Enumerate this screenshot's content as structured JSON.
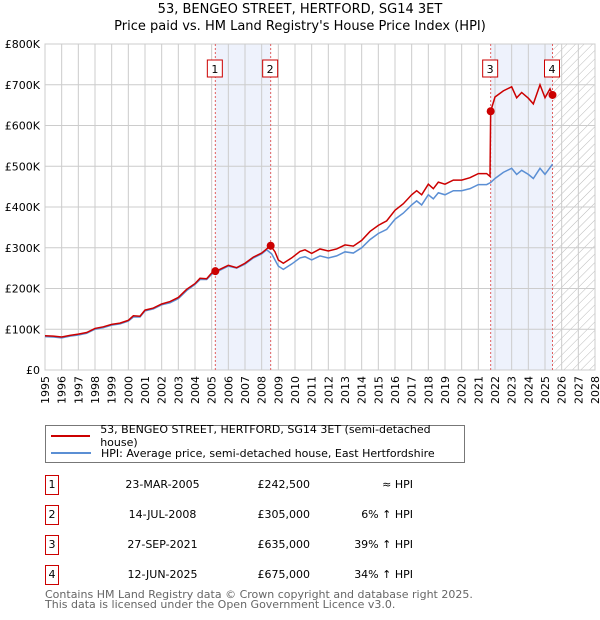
{
  "chart_data": {
    "type": "line",
    "title": "53, BENGEO STREET, HERTFORD, SG14 3ET",
    "subtitle": "Price paid vs. HM Land Registry's House Price Index (HPI)",
    "xlim": [
      1995,
      2028
    ],
    "ylim": [
      0,
      800000
    ],
    "x_ticks": [
      "1995",
      "1996",
      "1997",
      "1998",
      "1999",
      "2000",
      "2001",
      "2002",
      "2003",
      "2004",
      "2005",
      "2006",
      "2007",
      "2008",
      "2009",
      "2010",
      "2011",
      "2012",
      "2013",
      "2014",
      "2015",
      "2016",
      "2017",
      "2018",
      "2019",
      "2020",
      "2021",
      "2022",
      "2023",
      "2024",
      "2025",
      "2026",
      "2027",
      "2028"
    ],
    "y_ticks": [
      {
        "v": 0,
        "label": "£0"
      },
      {
        "v": 100000,
        "label": "£100K"
      },
      {
        "v": 200000,
        "label": "£200K"
      },
      {
        "v": 300000,
        "label": "£300K"
      },
      {
        "v": 400000,
        "label": "£400K"
      },
      {
        "v": 500000,
        "label": "£500K"
      },
      {
        "v": 600000,
        "label": "£600K"
      },
      {
        "v": 700000,
        "label": "£700K"
      },
      {
        "v": 800000,
        "label": "£800K"
      }
    ],
    "grid": true,
    "legend_placement": "below",
    "colors": {
      "property": "#cc0000",
      "hpi": "#5b8fd4",
      "shade": "#eef2fc",
      "vline": "#e06060"
    },
    "shaded_ranges": [
      [
        2005.22,
        2008.54
      ],
      [
        2021.74,
        2025.45
      ]
    ],
    "forecast_from": 2025.45,
    "series": [
      {
        "name": "53, BENGEO STREET, HERTFORD, SG14 3ET (semi-detached house)",
        "color": "#cc0000",
        "points": [
          [
            1995,
            84
          ],
          [
            1995.5,
            83
          ],
          [
            1996,
            81
          ],
          [
            1996.5,
            85
          ],
          [
            1997,
            88
          ],
          [
            1997.5,
            92
          ],
          [
            1998,
            102
          ],
          [
            1998.5,
            106
          ],
          [
            1999,
            112
          ],
          [
            1999.5,
            115
          ],
          [
            2000,
            122
          ],
          [
            2000.3,
            133
          ],
          [
            2000.7,
            132
          ],
          [
            2001,
            147
          ],
          [
            2001.5,
            152
          ],
          [
            2002,
            162
          ],
          [
            2002.5,
            168
          ],
          [
            2003,
            178
          ],
          [
            2003.5,
            198
          ],
          [
            2004,
            212
          ],
          [
            2004.3,
            225
          ],
          [
            2004.7,
            224
          ],
          [
            2005,
            238
          ],
          [
            2005.22,
            242.5
          ],
          [
            2005.5,
            247
          ],
          [
            2006,
            257
          ],
          [
            2006.5,
            251
          ],
          [
            2007,
            262
          ],
          [
            2007.5,
            277
          ],
          [
            2008,
            287
          ],
          [
            2008.3,
            297
          ],
          [
            2008.54,
            305
          ],
          [
            2008.8,
            290
          ],
          [
            2009,
            270
          ],
          [
            2009.3,
            262
          ],
          [
            2009.8,
            275
          ],
          [
            2010.3,
            291
          ],
          [
            2010.6,
            295
          ],
          [
            2011,
            286
          ],
          [
            2011.5,
            297
          ],
          [
            2012,
            292
          ],
          [
            2012.5,
            297
          ],
          [
            2013,
            307
          ],
          [
            2013.5,
            304
          ],
          [
            2014,
            318
          ],
          [
            2014.5,
            340
          ],
          [
            2015,
            355
          ],
          [
            2015.5,
            366
          ],
          [
            2016,
            392
          ],
          [
            2016.5,
            408
          ],
          [
            2017,
            430
          ],
          [
            2017.3,
            440
          ],
          [
            2017.6,
            430
          ],
          [
            2018,
            456
          ],
          [
            2018.3,
            445
          ],
          [
            2018.6,
            461
          ],
          [
            2019,
            456
          ],
          [
            2019.5,
            466
          ],
          [
            2020,
            466
          ],
          [
            2020.5,
            472
          ],
          [
            2021,
            482
          ],
          [
            2021.5,
            482
          ],
          [
            2021.7,
            475
          ],
          [
            2021.74,
            635
          ],
          [
            2022,
            670
          ],
          [
            2022.5,
            685
          ],
          [
            2023,
            695
          ],
          [
            2023.3,
            668
          ],
          [
            2023.6,
            681
          ],
          [
            2024,
            667
          ],
          [
            2024.3,
            653
          ],
          [
            2024.7,
            700
          ],
          [
            2025,
            668
          ],
          [
            2025.3,
            690
          ],
          [
            2025.45,
            675
          ]
        ]
      },
      {
        "name": "HPI: Average price, semi-detached house, East Hertfordshire",
        "color": "#5b8fd4",
        "points": [
          [
            1995,
            82
          ],
          [
            1995.5,
            81
          ],
          [
            1996,
            79
          ],
          [
            1996.5,
            83
          ],
          [
            1997,
            86
          ],
          [
            1997.5,
            90
          ],
          [
            1998,
            100
          ],
          [
            1998.5,
            104
          ],
          [
            1999,
            110
          ],
          [
            1999.5,
            113
          ],
          [
            2000,
            120
          ],
          [
            2000.3,
            130
          ],
          [
            2000.7,
            130
          ],
          [
            2001,
            145
          ],
          [
            2001.5,
            150
          ],
          [
            2002,
            160
          ],
          [
            2002.5,
            165
          ],
          [
            2003,
            175
          ],
          [
            2003.5,
            195
          ],
          [
            2004,
            210
          ],
          [
            2004.3,
            222
          ],
          [
            2004.7,
            222
          ],
          [
            2005,
            235
          ],
          [
            2005.5,
            245
          ],
          [
            2006,
            255
          ],
          [
            2006.5,
            250
          ],
          [
            2007,
            260
          ],
          [
            2007.5,
            275
          ],
          [
            2008,
            285
          ],
          [
            2008.3,
            295
          ],
          [
            2008.6,
            285
          ],
          [
            2009,
            255
          ],
          [
            2009.3,
            247
          ],
          [
            2009.8,
            260
          ],
          [
            2010.3,
            275
          ],
          [
            2010.6,
            278
          ],
          [
            2011,
            270
          ],
          [
            2011.5,
            280
          ],
          [
            2012,
            275
          ],
          [
            2012.5,
            280
          ],
          [
            2013,
            290
          ],
          [
            2013.5,
            287
          ],
          [
            2014,
            300
          ],
          [
            2014.5,
            320
          ],
          [
            2015,
            335
          ],
          [
            2015.5,
            345
          ],
          [
            2016,
            370
          ],
          [
            2016.5,
            385
          ],
          [
            2017,
            405
          ],
          [
            2017.3,
            415
          ],
          [
            2017.6,
            405
          ],
          [
            2018,
            430
          ],
          [
            2018.3,
            420
          ],
          [
            2018.6,
            435
          ],
          [
            2019,
            430
          ],
          [
            2019.5,
            440
          ],
          [
            2020,
            440
          ],
          [
            2020.5,
            445
          ],
          [
            2021,
            455
          ],
          [
            2021.5,
            455
          ],
          [
            2021.74,
            460
          ],
          [
            2022,
            470
          ],
          [
            2022.5,
            485
          ],
          [
            2023,
            495
          ],
          [
            2023.3,
            480
          ],
          [
            2023.6,
            490
          ],
          [
            2024,
            480
          ],
          [
            2024.3,
            470
          ],
          [
            2024.7,
            495
          ],
          [
            2025,
            480
          ],
          [
            2025.45,
            505
          ]
        ]
      }
    ],
    "sales": [
      {
        "n": "1",
        "x": 2005.22,
        "price": 242500
      },
      {
        "n": "2",
        "x": 2008.54,
        "price": 305000
      },
      {
        "n": "3",
        "x": 2021.74,
        "price": 635000
      },
      {
        "n": "4",
        "x": 2025.45,
        "price": 675000
      }
    ]
  },
  "header": {
    "title": "53, BENGEO STREET, HERTFORD, SG14 3ET",
    "subtitle": "Price paid vs. HM Land Registry's House Price Index (HPI)"
  },
  "legend": {
    "property": "53, BENGEO STREET, HERTFORD, SG14 3ET (semi-detached house)",
    "hpi": "HPI: Average price, semi-detached house, East Hertfordshire"
  },
  "transactions": [
    {
      "n": "1",
      "date": "23-MAR-2005",
      "price": "£242,500",
      "hpi": "≈ HPI"
    },
    {
      "n": "2",
      "date": "14-JUL-2008",
      "price": "£305,000",
      "hpi": "6% ↑ HPI"
    },
    {
      "n": "3",
      "date": "27-SEP-2021",
      "price": "£635,000",
      "hpi": "39% ↑ HPI"
    },
    {
      "n": "4",
      "date": "12-JUN-2025",
      "price": "£675,000",
      "hpi": "34% ↑ HPI"
    }
  ],
  "footer": {
    "line1": "Contains HM Land Registry data © Crown copyright and database right 2025.",
    "line2": "This data is licensed under the Open Government Licence v3.0."
  }
}
